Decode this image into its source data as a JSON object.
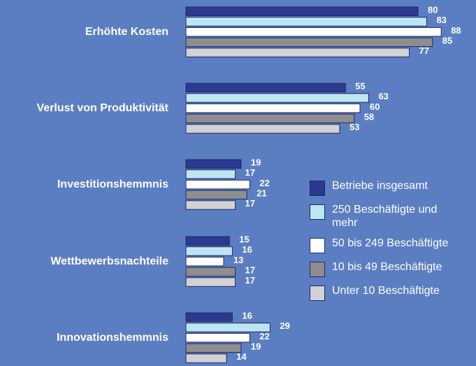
{
  "chart_data": {
    "type": "bar",
    "orientation": "horizontal",
    "categories": [
      "Erhöhte Kosten",
      "Verlust von Produktivität",
      "Investitionshemmnis",
      "Wettbewerbsnachteile",
      "Innovationshemmnis"
    ],
    "series": [
      {
        "name": "Betriebe insgesamt",
        "color": "#2b3990",
        "values": [
          80,
          55,
          19,
          15,
          16
        ]
      },
      {
        "name": "250 Beschäftigte und mehr",
        "color": "#bde6f2",
        "values": [
          83,
          63,
          17,
          16,
          29
        ]
      },
      {
        "name": "50 bis 249 Beschäftigte",
        "color": "#ffffff",
        "values": [
          88,
          60,
          22,
          13,
          22
        ]
      },
      {
        "name": "10 bis 49 Beschäftigte",
        "color": "#8e8e8e",
        "values": [
          85,
          58,
          21,
          17,
          19
        ]
      },
      {
        "name": "Unter 10 Beschäftigte",
        "color": "#d2d2d4",
        "values": [
          77,
          53,
          17,
          17,
          14
        ]
      }
    ]
  }
}
